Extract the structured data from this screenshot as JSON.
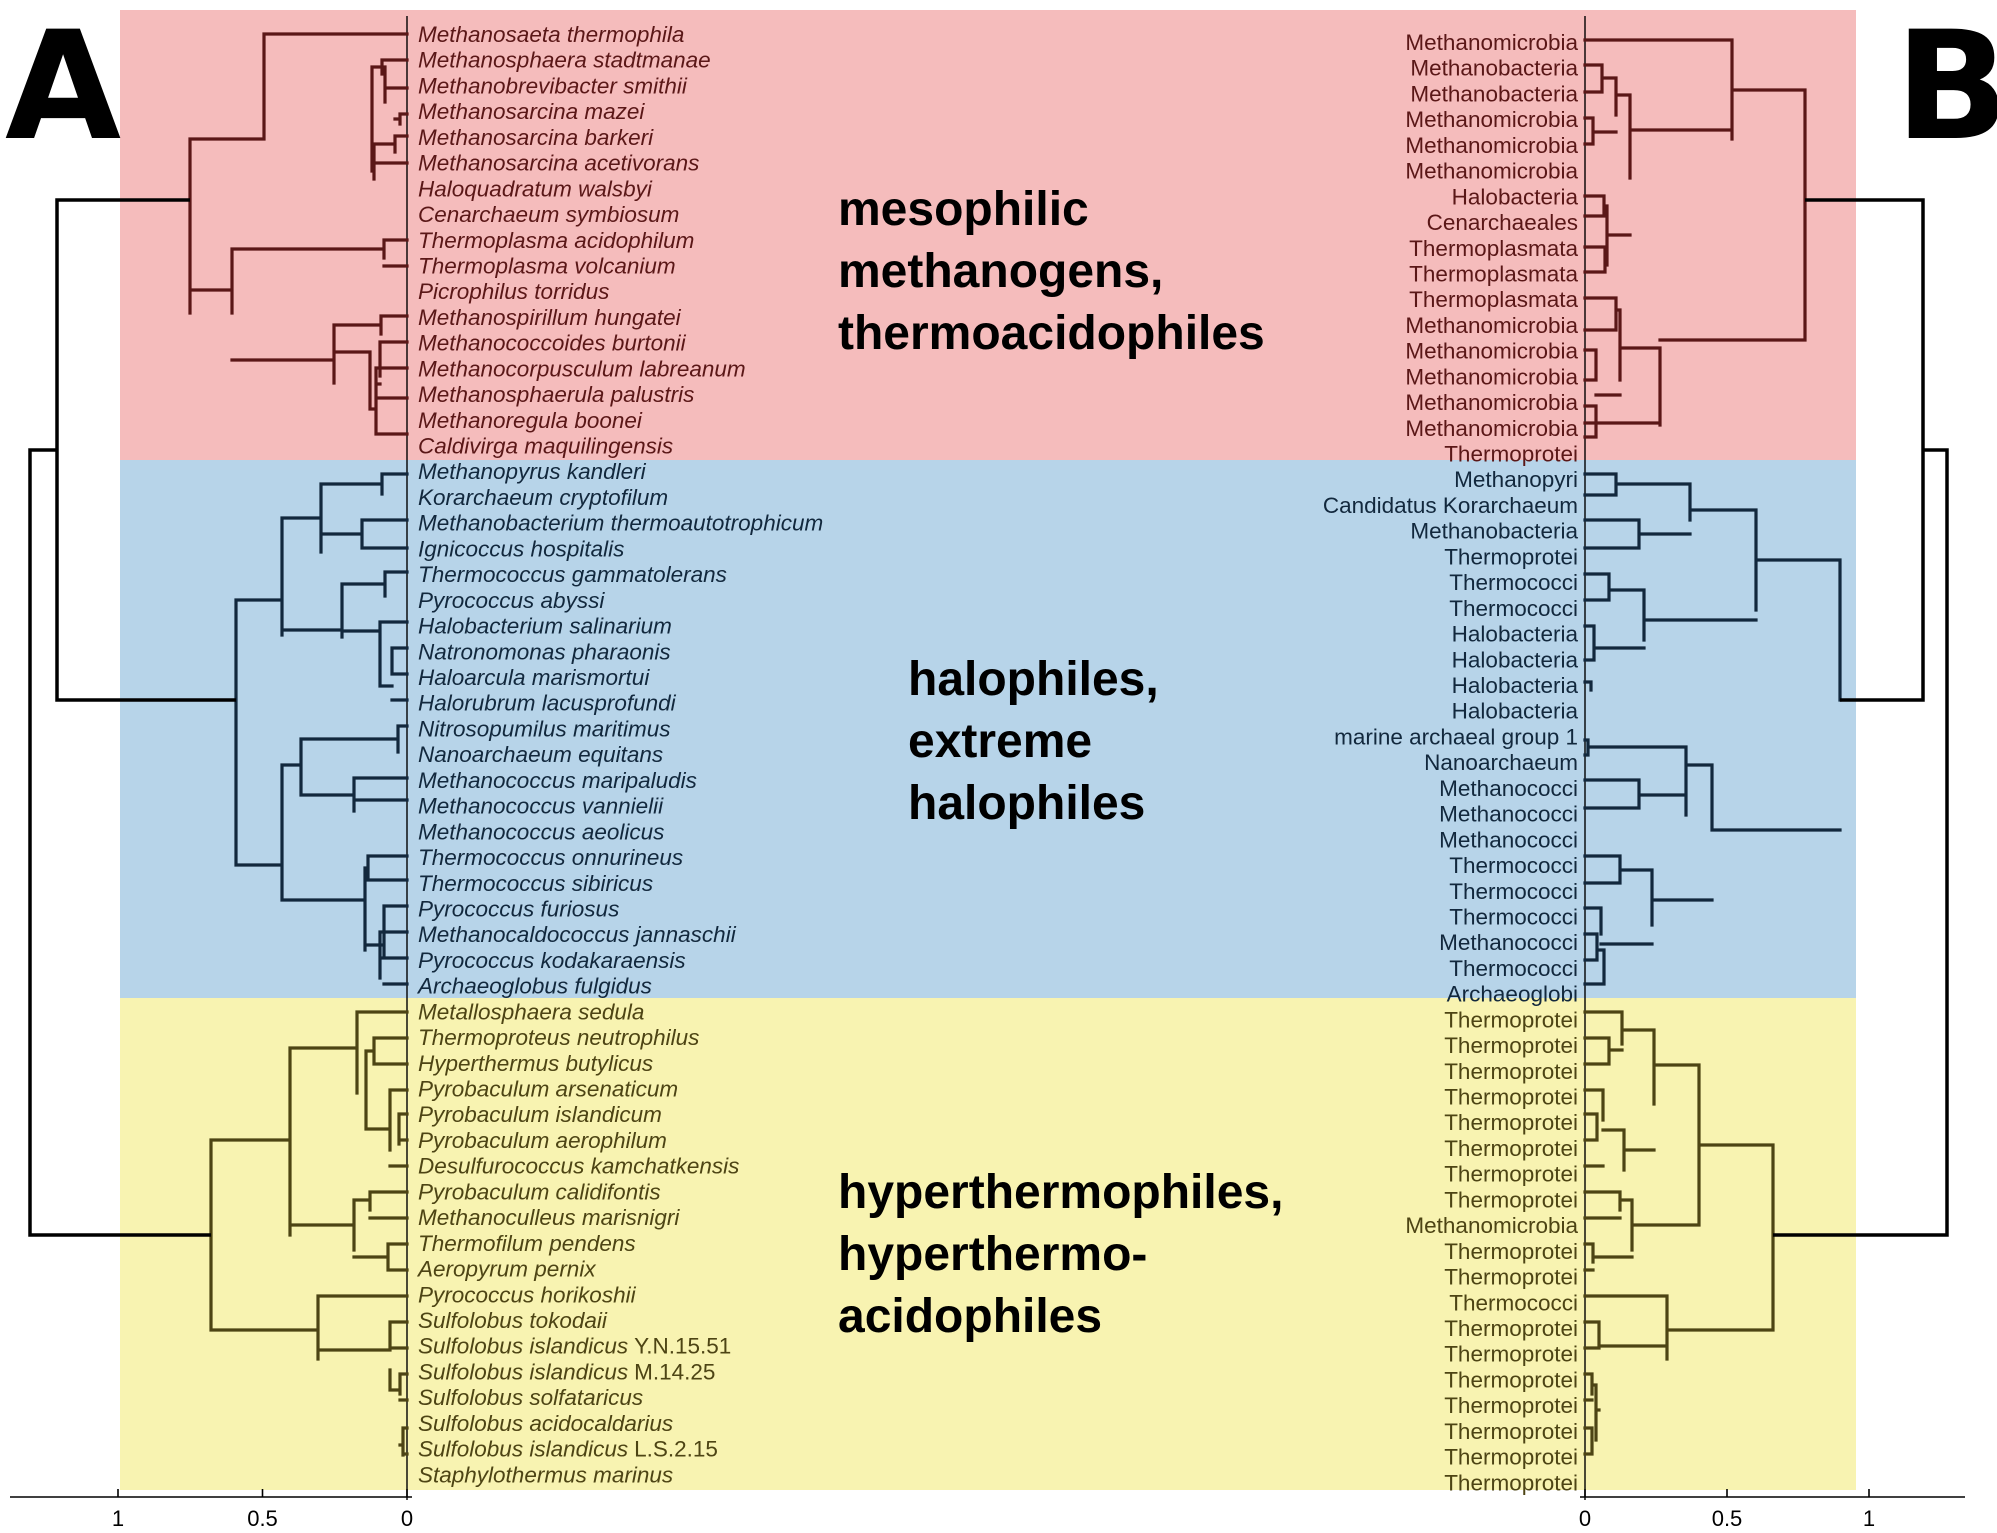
{
  "panels": {
    "left_label": "A",
    "right_label": "B"
  },
  "clusters": [
    {
      "id": "red",
      "label_lines": [
        "mesophilic",
        "methanogens,",
        "thermoacidophiles"
      ],
      "background": "#f5bcbc",
      "branch_color": "#5a1717"
    },
    {
      "id": "blue",
      "label_lines": [
        "halophiles,",
        "extreme",
        "halophiles"
      ],
      "background": "#b7d4e9",
      "branch_color": "#12283d"
    },
    {
      "id": "yellow",
      "label_lines": [
        "hyperthermophiles,",
        "hyperthermo-",
        "acidophiles"
      ],
      "background": "#f8f3b1",
      "branch_color": "#4d4414"
    }
  ],
  "left_leaves": [
    {
      "name": "Methanosaeta thermophila",
      "suffix": ""
    },
    {
      "name": "Methanosphaera stadtmanae",
      "suffix": ""
    },
    {
      "name": "Methanobrevibacter smithii",
      "suffix": ""
    },
    {
      "name": "Methanosarcina mazei",
      "suffix": ""
    },
    {
      "name": "Methanosarcina barkeri",
      "suffix": ""
    },
    {
      "name": "Methanosarcina acetivorans",
      "suffix": ""
    },
    {
      "name": "Haloquadratum walsbyi",
      "suffix": ""
    },
    {
      "name": "Cenarchaeum symbiosum",
      "suffix": ""
    },
    {
      "name": "Thermoplasma acidophilum",
      "suffix": ""
    },
    {
      "name": "Thermoplasma volcanium",
      "suffix": ""
    },
    {
      "name": "Picrophilus torridus",
      "suffix": ""
    },
    {
      "name": "Methanospirillum hungatei",
      "suffix": ""
    },
    {
      "name": "Methanococcoides burtonii",
      "suffix": ""
    },
    {
      "name": "Methanocorpusculum labreanum",
      "suffix": ""
    },
    {
      "name": "Methanosphaerula palustris",
      "suffix": ""
    },
    {
      "name": "Methanoregula boonei",
      "suffix": ""
    },
    {
      "name": "Caldivirga maquilingensis",
      "suffix": ""
    },
    {
      "name": "Methanopyrus kandleri",
      "suffix": ""
    },
    {
      "name": "Korarchaeum cryptofilum",
      "suffix": ""
    },
    {
      "name": "Methanobacterium thermoautotrophicum",
      "suffix": ""
    },
    {
      "name": "Ignicoccus hospitalis",
      "suffix": ""
    },
    {
      "name": "Thermococcus gammatolerans",
      "suffix": ""
    },
    {
      "name": "Pyrococcus abyssi",
      "suffix": ""
    },
    {
      "name": "Halobacterium salinarium",
      "suffix": ""
    },
    {
      "name": "Natronomonas pharaonis",
      "suffix": ""
    },
    {
      "name": "Haloarcula marismortui",
      "suffix": ""
    },
    {
      "name": "Halorubrum lacusprofundi",
      "suffix": ""
    },
    {
      "name": "Nitrosopumilus maritimus",
      "suffix": ""
    },
    {
      "name": "Nanoarchaeum equitans",
      "suffix": ""
    },
    {
      "name": "Methanococcus maripaludis",
      "suffix": ""
    },
    {
      "name": "Methanococcus vannielii",
      "suffix": ""
    },
    {
      "name": "Methanococcus aeolicus",
      "suffix": ""
    },
    {
      "name": "Thermococcus onnurineus",
      "suffix": ""
    },
    {
      "name": "Thermococcus sibiricus",
      "suffix": ""
    },
    {
      "name": "Pyrococcus furiosus",
      "suffix": ""
    },
    {
      "name": "Methanocaldococcus jannaschii",
      "suffix": ""
    },
    {
      "name": "Pyrococcus kodakaraensis",
      "suffix": ""
    },
    {
      "name": "Archaeoglobus fulgidus",
      "suffix": ""
    },
    {
      "name": "Metallosphaera sedula",
      "suffix": ""
    },
    {
      "name": "Thermoproteus neutrophilus",
      "suffix": ""
    },
    {
      "name": "Hyperthermus butylicus",
      "suffix": ""
    },
    {
      "name": "Pyrobaculum arsenaticum",
      "suffix": ""
    },
    {
      "name": "Pyrobaculum islandicum",
      "suffix": ""
    },
    {
      "name": "Pyrobaculum aerophilum",
      "suffix": ""
    },
    {
      "name": "Desulfurococcus kamchatkensis",
      "suffix": ""
    },
    {
      "name": "Pyrobaculum calidifontis",
      "suffix": ""
    },
    {
      "name": "Methanoculleus marisnigri",
      "suffix": ""
    },
    {
      "name": "Thermofilum pendens",
      "suffix": ""
    },
    {
      "name": "Aeropyrum pernix",
      "suffix": ""
    },
    {
      "name": "Pyrococcus horikoshii",
      "suffix": ""
    },
    {
      "name": "Sulfolobus tokodaii",
      "suffix": ""
    },
    {
      "name": "Sulfolobus islandicus",
      "suffix": "Y.N.15.51"
    },
    {
      "name": "Sulfolobus islandicus",
      "suffix": "M.14.25"
    },
    {
      "name": "Sulfolobus solfataricus",
      "suffix": ""
    },
    {
      "name": "Sulfolobus acidocaldarius",
      "suffix": ""
    },
    {
      "name": "Sulfolobus islandicus",
      "suffix": "L.S.2.15"
    },
    {
      "name": "Staphylothermus marinus",
      "suffix": ""
    }
  ],
  "right_leaves": [
    "Methanomicrobia",
    "Methanobacteria",
    "Methanobacteria",
    "Methanomicrobia",
    "Methanomicrobia",
    "Methanomicrobia",
    "Halobacteria",
    "Cenarchaeales",
    "Thermoplasmata",
    "Thermoplasmata",
    "Thermoplasmata",
    "Methanomicrobia",
    "Methanomicrobia",
    "Methanomicrobia",
    "Methanomicrobia",
    "Methanomicrobia",
    "Thermoprotei",
    "Methanopyri",
    "Candidatus Korarchaeum",
    "Methanobacteria",
    "Thermoprotei",
    "Thermococci",
    "Thermococci",
    "Halobacteria",
    "Halobacteria",
    "Halobacteria",
    "Halobacteria",
    "marine archaeal group 1",
    "Nanoarchaeum",
    "Methanococci",
    "Methanococci",
    "Methanococci",
    "Thermococci",
    "Thermococci",
    "Thermococci",
    "Methanococci",
    "Thermococci",
    "Archaeoglobi",
    "Thermoprotei",
    "Thermoprotei",
    "Thermoprotei",
    "Thermoprotei",
    "Thermoprotei",
    "Thermoprotei",
    "Thermoprotei",
    "Thermoprotei",
    "Methanomicrobia",
    "Thermoprotei",
    "Thermoprotei",
    "Thermococci",
    "Thermoprotei",
    "Thermoprotei",
    "Thermoprotei",
    "Thermoprotei",
    "Thermoprotei",
    "Thermoprotei",
    "Thermoprotei"
  ],
  "left_axis": {
    "ticks": [
      {
        "label": "1",
        "value": 1
      },
      {
        "label": "0.5",
        "value": 0.5
      },
      {
        "label": "0",
        "value": 0
      }
    ]
  },
  "right_axis": {
    "ticks": [
      {
        "label": "0",
        "value": 0
      },
      {
        "label": "0.5",
        "value": 0.5
      },
      {
        "label": "1",
        "value": 1
      }
    ]
  }
}
